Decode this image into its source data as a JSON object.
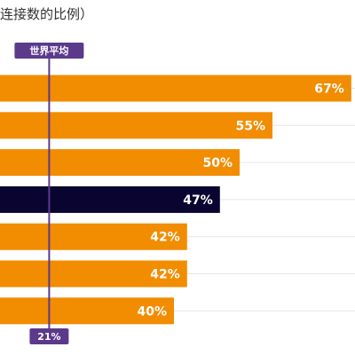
{
  "chart_data": {
    "type": "bar",
    "orientation": "horizontal",
    "title": "连接数的比例）",
    "categories": [
      "",
      "",
      "",
      "",
      "",
      "",
      ""
    ],
    "values": [
      67,
      55,
      50,
      47,
      42,
      42,
      40
    ],
    "value_labels": [
      "67%",
      "55%",
      "50%",
      "47%",
      "42%",
      "42%",
      "40%"
    ],
    "unit": "%",
    "highlight_index": 3,
    "reference_line": {
      "label": "世界平均",
      "value": 21,
      "value_label": "21%"
    },
    "grid": true,
    "colors": {
      "bar": "#F28C00",
      "highlight": "#0A0530",
      "reference": "#5B3A8C",
      "grid": "#E6E6E6"
    }
  }
}
